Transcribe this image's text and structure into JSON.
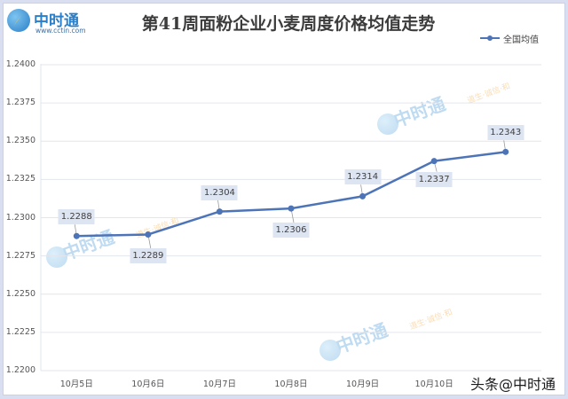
{
  "header": {
    "logo_name": "中时通",
    "logo_url": "www.cctin.com",
    "title": "第41周面粉企业小麦周度价格均值走势"
  },
  "legend": {
    "series_label": "全国均值",
    "color": "#4e74b8"
  },
  "watermark": {
    "footer": "头条@中时通",
    "center_text": "中时通",
    "slogan": "道生·诚信·和"
  },
  "chart_data": {
    "type": "line",
    "title": "第41周面粉企业小麦周度价格均值走势",
    "xlabel": "",
    "ylabel": "",
    "categories": [
      "10月5日",
      "10月6日",
      "10月7日",
      "10月8日",
      "10月9日",
      "10月10日",
      ""
    ],
    "series": [
      {
        "name": "全国均值",
        "color": "#4e74b8",
        "values": [
          1.2288,
          1.2289,
          1.2304,
          1.2306,
          1.2314,
          1.2337,
          1.2343
        ]
      }
    ],
    "data_labels": [
      "1.2288",
      "1.2289",
      "1.2304",
      "1.2306",
      "1.2314",
      "1.2337",
      "1.2343"
    ],
    "ylim": [
      1.22,
      1.24
    ],
    "yticks": [
      "1.2400",
      "1.2375",
      "1.2350",
      "1.2325",
      "1.2300",
      "1.2275",
      "1.2250",
      "1.2225",
      "1.2200"
    ],
    "grid": true,
    "legend_position": "top-right"
  }
}
